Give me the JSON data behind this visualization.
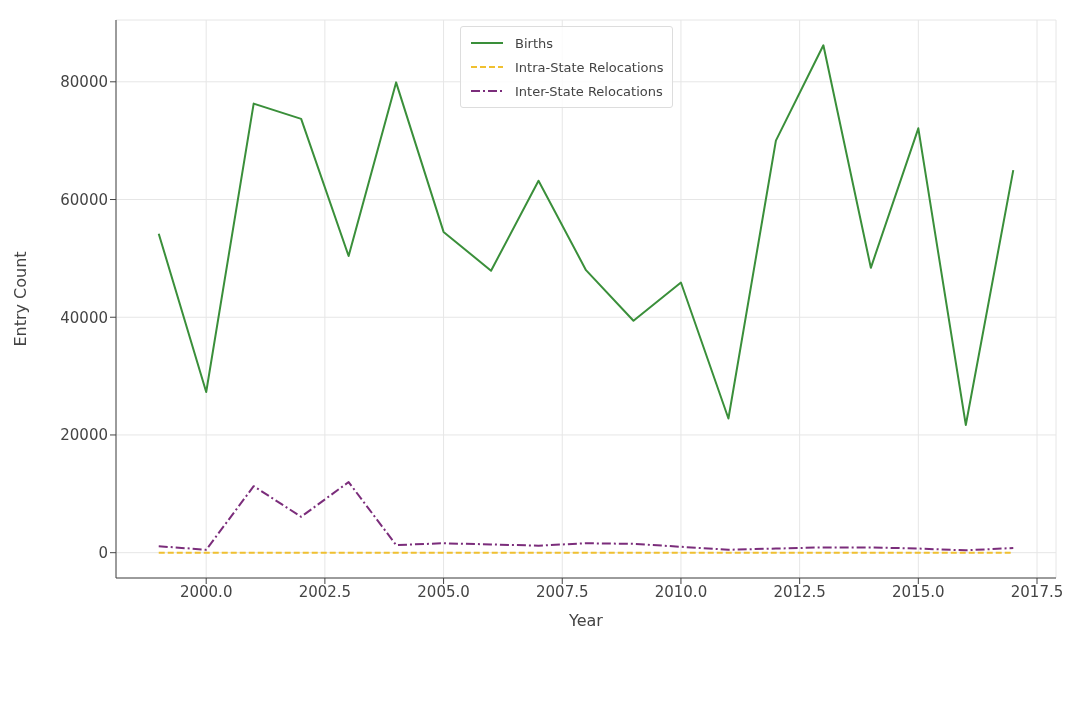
{
  "chart_data": {
    "type": "line",
    "xlabel": "Year",
    "ylabel": "Entry Count",
    "x": [
      1999,
      2000,
      2001,
      2002,
      2003,
      2004,
      2005,
      2006,
      2007,
      2008,
      2009,
      2010,
      2011,
      2012,
      2013,
      2014,
      2015,
      2016,
      2017
    ],
    "series": [
      {
        "name": "Births",
        "color": "#3a8f3a",
        "line_style": "solid",
        "values": [
          54200,
          27300,
          76300,
          73700,
          50400,
          79900,
          54500,
          47900,
          63200,
          48000,
          39400,
          45900,
          22800,
          70000,
          86200,
          48400,
          72100,
          21700,
          65000
        ]
      },
      {
        "name": "Intra-State Relocations",
        "color": "#f0c030",
        "line_style": "dashed",
        "values": [
          0,
          0,
          0,
          0,
          0,
          0,
          0,
          0,
          0,
          0,
          0,
          0,
          0,
          0,
          0,
          0,
          0,
          0,
          0
        ]
      },
      {
        "name": "Inter-State Relocations",
        "color": "#7b2d7b",
        "line_style": "dashdot",
        "values": [
          1100,
          500,
          11300,
          6100,
          12000,
          1300,
          1600,
          1400,
          1200,
          1600,
          1500,
          1000,
          500,
          700,
          900,
          900,
          700,
          400,
          800
        ]
      }
    ],
    "xlim": [
      1998.1,
      2017.9
    ],
    "xticks": [
      {
        "value": 2000,
        "label": "2000.0"
      },
      {
        "value": 2002.5,
        "label": "2002.5"
      },
      {
        "value": 2005,
        "label": "2005.0"
      },
      {
        "value": 2007.5,
        "label": "2007.5"
      },
      {
        "value": 2010,
        "label": "2010.0"
      },
      {
        "value": 2012.5,
        "label": "2012.5"
      },
      {
        "value": 2015,
        "label": "2015.0"
      },
      {
        "value": 2017.5,
        "label": "2017.5"
      }
    ],
    "ylim": [
      -4300,
      90500
    ],
    "yticks": [
      0,
      20000,
      40000,
      60000,
      80000
    ],
    "grid": true,
    "legend": "top",
    "marker": "none"
  }
}
